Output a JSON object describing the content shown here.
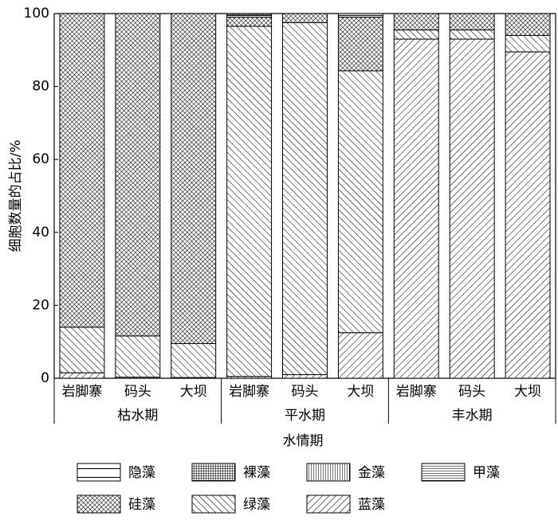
{
  "chart_data": {
    "type": "stacked-bar",
    "y_label": "细胞数量的占比/%",
    "x_label": "水情期",
    "groups": [
      {
        "name": "枯水期",
        "categories": [
          "岩脚寨",
          "码头",
          "大坝"
        ]
      },
      {
        "name": "平水期",
        "categories": [
          "岩脚寨",
          "码头",
          "大坝"
        ]
      },
      {
        "name": "丰水期",
        "categories": [
          "岩脚寨",
          "码头",
          "大坝"
        ]
      }
    ],
    "ylim": [
      0,
      100
    ],
    "yticks": [
      0,
      20,
      40,
      60,
      80,
      100
    ],
    "legend": "bottom",
    "series": [
      {
        "name": "蓝藻",
        "color": "#000000",
        "pattern": "slash",
        "values": [
          1.5,
          0.3,
          0.2,
          0.5,
          1,
          12.5,
          93,
          93,
          89.5
        ]
      },
      {
        "name": "绿藻",
        "color": "#000000",
        "pattern": "backslash",
        "values": [
          12.5,
          11.3,
          9.3,
          96,
          96.5,
          71.8,
          2.5,
          2.5,
          4.5
        ]
      },
      {
        "name": "硅藻",
        "color": "#000000",
        "pattern": "crosshatch",
        "values": [
          86,
          88.4,
          90.5,
          2.5,
          2.5,
          14.7,
          4.5,
          4.5,
          6
        ]
      },
      {
        "name": "甲藻",
        "color": "#000000",
        "pattern": "horizontal",
        "values": [
          0,
          0,
          0,
          0.5,
          0,
          0.5,
          0,
          0,
          0
        ]
      },
      {
        "name": "金藻",
        "color": "#000000",
        "pattern": "vertical",
        "values": [
          0,
          0,
          0,
          0,
          0,
          0,
          0,
          0,
          0
        ]
      },
      {
        "name": "裸藻",
        "color": "#000000",
        "pattern": "grid",
        "values": [
          0,
          0,
          0,
          0.5,
          0,
          0,
          0,
          0,
          0
        ]
      },
      {
        "name": "隐藻",
        "color": "#000000",
        "pattern": "sparse",
        "values": [
          0,
          0,
          0,
          0,
          0,
          0.5,
          0,
          0,
          0
        ]
      }
    ]
  }
}
